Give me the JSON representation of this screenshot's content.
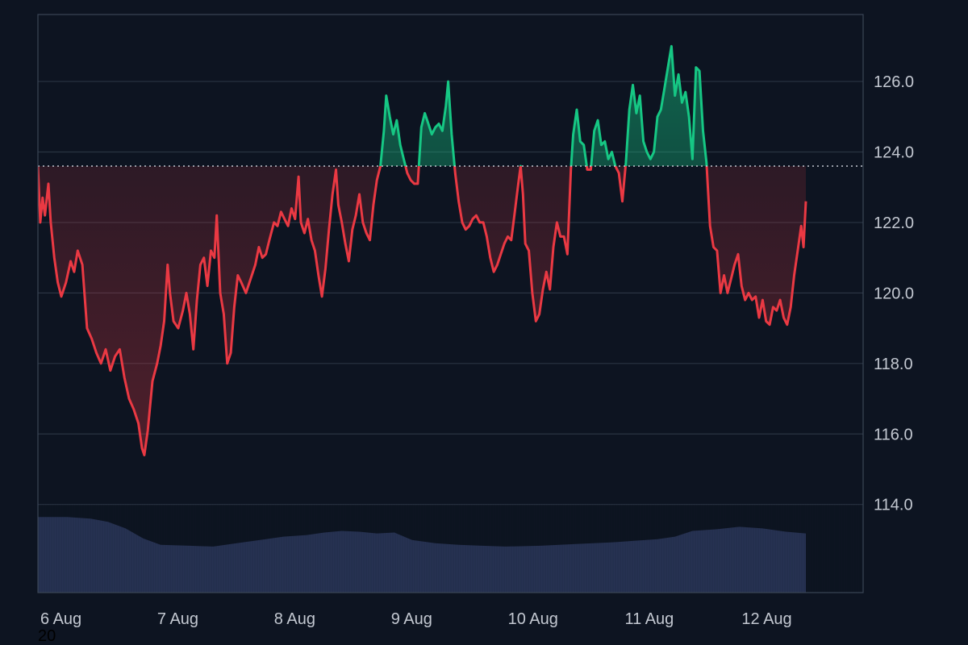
{
  "chart_data": {
    "type": "area",
    "title": "",
    "xlabel": "",
    "ylabel": "",
    "baseline": 123.6,
    "ylim": [
      111.5,
      127.9
    ],
    "y_ticks": [
      "126.0",
      "124.0",
      "122.0",
      "120.0",
      "118.0",
      "116.0",
      "114.0"
    ],
    "y_tick_values": [
      126,
      124,
      122,
      120,
      118,
      116,
      114
    ],
    "x_ticks": [
      "6 Aug",
      "7 Aug",
      "8 Aug",
      "9 Aug",
      "10 Aug",
      "11 Aug",
      "12 Aug"
    ],
    "x_tick_positions_day": [
      0,
      1,
      2,
      3,
      4,
      5,
      6
    ],
    "corner_label": "20",
    "grid": true,
    "x_range_days": [
      0,
      7.06
    ],
    "series": [
      {
        "values": [
          [
            0.0,
            123.6
          ],
          [
            0.02,
            122.0
          ],
          [
            0.04,
            122.7
          ],
          [
            0.06,
            122.2
          ],
          [
            0.09,
            123.1
          ],
          [
            0.11,
            122.0
          ],
          [
            0.14,
            121.0
          ],
          [
            0.17,
            120.3
          ],
          [
            0.2,
            119.9
          ],
          [
            0.24,
            120.3
          ],
          [
            0.28,
            120.9
          ],
          [
            0.31,
            120.6
          ],
          [
            0.34,
            121.2
          ],
          [
            0.38,
            120.8
          ],
          [
            0.42,
            119.0
          ],
          [
            0.46,
            118.7
          ],
          [
            0.5,
            118.3
          ],
          [
            0.54,
            118.0
          ],
          [
            0.58,
            118.4
          ],
          [
            0.62,
            117.8
          ],
          [
            0.66,
            118.2
          ],
          [
            0.7,
            118.4
          ],
          [
            0.74,
            117.6
          ],
          [
            0.78,
            117.0
          ],
          [
            0.82,
            116.7
          ],
          [
            0.86,
            116.3
          ],
          [
            0.89,
            115.6
          ],
          [
            0.91,
            115.4
          ],
          [
            0.94,
            116.1
          ],
          [
            0.98,
            117.5
          ],
          [
            1.02,
            118.0
          ],
          [
            1.05,
            118.5
          ],
          [
            1.08,
            119.2
          ],
          [
            1.11,
            120.8
          ],
          [
            1.13,
            120.0
          ],
          [
            1.16,
            119.2
          ],
          [
            1.2,
            119.0
          ],
          [
            1.24,
            119.5
          ],
          [
            1.27,
            120.0
          ],
          [
            1.3,
            119.4
          ],
          [
            1.33,
            118.4
          ],
          [
            1.36,
            119.8
          ],
          [
            1.39,
            120.8
          ],
          [
            1.42,
            121.0
          ],
          [
            1.45,
            120.2
          ],
          [
            1.48,
            121.2
          ],
          [
            1.51,
            121.0
          ],
          [
            1.53,
            122.2
          ],
          [
            1.56,
            120.0
          ],
          [
            1.59,
            119.4
          ],
          [
            1.62,
            118.0
          ],
          [
            1.65,
            118.3
          ],
          [
            1.68,
            119.6
          ],
          [
            1.71,
            120.5
          ],
          [
            1.74,
            120.3
          ],
          [
            1.78,
            120.0
          ],
          [
            1.82,
            120.4
          ],
          [
            1.86,
            120.8
          ],
          [
            1.89,
            121.3
          ],
          [
            1.92,
            121.0
          ],
          [
            1.95,
            121.1
          ],
          [
            1.98,
            121.5
          ],
          [
            2.02,
            122.0
          ],
          [
            2.05,
            121.9
          ],
          [
            2.08,
            122.3
          ],
          [
            2.11,
            122.1
          ],
          [
            2.14,
            121.9
          ],
          [
            2.17,
            122.4
          ],
          [
            2.2,
            122.1
          ],
          [
            2.23,
            123.3
          ],
          [
            2.25,
            122.0
          ],
          [
            2.28,
            121.7
          ],
          [
            2.31,
            122.1
          ],
          [
            2.34,
            121.5
          ],
          [
            2.37,
            121.2
          ],
          [
            2.4,
            120.5
          ],
          [
            2.43,
            119.9
          ],
          [
            2.46,
            120.7
          ],
          [
            2.49,
            121.8
          ],
          [
            2.52,
            122.8
          ],
          [
            2.55,
            123.5
          ],
          [
            2.57,
            122.5
          ],
          [
            2.6,
            122.0
          ],
          [
            2.63,
            121.4
          ],
          [
            2.66,
            120.9
          ],
          [
            2.69,
            121.8
          ],
          [
            2.72,
            122.2
          ],
          [
            2.75,
            122.8
          ],
          [
            2.78,
            122.0
          ],
          [
            2.81,
            121.7
          ],
          [
            2.84,
            121.5
          ],
          [
            2.87,
            122.5
          ],
          [
            2.9,
            123.2
          ],
          [
            2.93,
            123.6
          ],
          [
            2.96,
            124.6
          ],
          [
            2.98,
            125.6
          ],
          [
            3.01,
            125.0
          ],
          [
            3.04,
            124.5
          ],
          [
            3.07,
            124.9
          ],
          [
            3.1,
            124.2
          ],
          [
            3.13,
            123.8
          ],
          [
            3.16,
            123.4
          ],
          [
            3.19,
            123.2
          ],
          [
            3.22,
            123.1
          ],
          [
            3.25,
            123.1
          ],
          [
            3.28,
            124.7
          ],
          [
            3.31,
            125.1
          ],
          [
            3.34,
            124.8
          ],
          [
            3.37,
            124.5
          ],
          [
            3.4,
            124.7
          ],
          [
            3.43,
            124.8
          ],
          [
            3.46,
            124.6
          ],
          [
            3.49,
            125.3
          ],
          [
            3.51,
            126.0
          ],
          [
            3.54,
            124.5
          ],
          [
            3.57,
            123.4
          ],
          [
            3.6,
            122.6
          ],
          [
            3.63,
            122.0
          ],
          [
            3.66,
            121.8
          ],
          [
            3.69,
            121.9
          ],
          [
            3.72,
            122.1
          ],
          [
            3.75,
            122.2
          ],
          [
            3.78,
            122.0
          ],
          [
            3.81,
            122.0
          ],
          [
            3.84,
            121.6
          ],
          [
            3.87,
            121.0
          ],
          [
            3.9,
            120.6
          ],
          [
            3.93,
            120.8
          ],
          [
            3.96,
            121.1
          ],
          [
            3.99,
            121.4
          ],
          [
            4.02,
            121.6
          ],
          [
            4.05,
            121.5
          ],
          [
            4.08,
            122.3
          ],
          [
            4.11,
            123.1
          ],
          [
            4.13,
            123.6
          ],
          [
            4.15,
            122.8
          ],
          [
            4.17,
            121.4
          ],
          [
            4.2,
            121.2
          ],
          [
            4.23,
            120.0
          ],
          [
            4.26,
            119.2
          ],
          [
            4.29,
            119.4
          ],
          [
            4.32,
            120.1
          ],
          [
            4.35,
            120.6
          ],
          [
            4.38,
            120.1
          ],
          [
            4.41,
            121.3
          ],
          [
            4.44,
            122.0
          ],
          [
            4.47,
            121.6
          ],
          [
            4.5,
            121.6
          ],
          [
            4.53,
            121.1
          ],
          [
            4.56,
            123.5
          ],
          [
            4.58,
            124.5
          ],
          [
            4.61,
            125.2
          ],
          [
            4.64,
            124.3
          ],
          [
            4.67,
            124.2
          ],
          [
            4.7,
            123.5
          ],
          [
            4.73,
            123.5
          ],
          [
            4.76,
            124.6
          ],
          [
            4.79,
            124.9
          ],
          [
            4.82,
            124.2
          ],
          [
            4.85,
            124.3
          ],
          [
            4.88,
            123.8
          ],
          [
            4.91,
            124.0
          ],
          [
            4.94,
            123.6
          ],
          [
            4.97,
            123.4
          ],
          [
            5.0,
            122.6
          ],
          [
            5.03,
            123.7
          ],
          [
            5.06,
            125.2
          ],
          [
            5.09,
            125.9
          ],
          [
            5.12,
            125.1
          ],
          [
            5.15,
            125.6
          ],
          [
            5.18,
            124.3
          ],
          [
            5.21,
            124.0
          ],
          [
            5.24,
            123.8
          ],
          [
            5.27,
            124.0
          ],
          [
            5.3,
            125.0
          ],
          [
            5.33,
            125.2
          ],
          [
            5.36,
            125.8
          ],
          [
            5.39,
            126.4
          ],
          [
            5.42,
            127.0
          ],
          [
            5.45,
            125.6
          ],
          [
            5.48,
            126.2
          ],
          [
            5.51,
            125.4
          ],
          [
            5.54,
            125.7
          ],
          [
            5.57,
            125.0
          ],
          [
            5.6,
            123.8
          ],
          [
            5.63,
            126.4
          ],
          [
            5.66,
            126.3
          ],
          [
            5.69,
            124.6
          ],
          [
            5.72,
            123.7
          ],
          [
            5.75,
            121.9
          ],
          [
            5.78,
            121.3
          ],
          [
            5.81,
            121.2
          ],
          [
            5.84,
            120.0
          ],
          [
            5.87,
            120.5
          ],
          [
            5.9,
            120.0
          ],
          [
            5.93,
            120.4
          ],
          [
            5.96,
            120.8
          ],
          [
            5.99,
            121.1
          ],
          [
            6.02,
            120.2
          ],
          [
            6.05,
            119.8
          ],
          [
            6.08,
            120.0
          ],
          [
            6.11,
            119.8
          ],
          [
            6.14,
            119.9
          ],
          [
            6.17,
            119.3
          ],
          [
            6.2,
            119.8
          ],
          [
            6.23,
            119.2
          ],
          [
            6.26,
            119.1
          ],
          [
            6.29,
            119.6
          ],
          [
            6.32,
            119.5
          ],
          [
            6.35,
            119.8
          ],
          [
            6.38,
            119.3
          ],
          [
            6.41,
            119.1
          ],
          [
            6.44,
            119.6
          ],
          [
            6.47,
            120.5
          ],
          [
            6.5,
            121.2
          ],
          [
            6.53,
            121.9
          ],
          [
            6.55,
            121.3
          ],
          [
            6.57,
            122.6
          ]
        ]
      },
      {
        "values": [
          [
            0.0,
            0.92
          ],
          [
            0.25,
            0.92
          ],
          [
            0.45,
            0.9
          ],
          [
            0.6,
            0.86
          ],
          [
            0.75,
            0.78
          ],
          [
            0.9,
            0.66
          ],
          [
            1.05,
            0.58
          ],
          [
            1.3,
            0.57
          ],
          [
            1.5,
            0.56
          ],
          [
            1.7,
            0.6
          ],
          [
            1.9,
            0.64
          ],
          [
            2.1,
            0.68
          ],
          [
            2.3,
            0.7
          ],
          [
            2.45,
            0.73
          ],
          [
            2.6,
            0.75
          ],
          [
            2.75,
            0.74
          ],
          [
            2.9,
            0.72
          ],
          [
            3.05,
            0.73
          ],
          [
            3.2,
            0.64
          ],
          [
            3.4,
            0.6
          ],
          [
            3.6,
            0.58
          ],
          [
            3.8,
            0.57
          ],
          [
            4.0,
            0.56
          ],
          [
            4.3,
            0.57
          ],
          [
            4.6,
            0.59
          ],
          [
            4.9,
            0.61
          ],
          [
            5.1,
            0.63
          ],
          [
            5.3,
            0.65
          ],
          [
            5.45,
            0.68
          ],
          [
            5.6,
            0.75
          ],
          [
            5.8,
            0.77
          ],
          [
            6.0,
            0.8
          ],
          [
            6.2,
            0.78
          ],
          [
            6.4,
            0.74
          ],
          [
            6.57,
            0.72
          ]
        ]
      }
    ]
  },
  "colors": {
    "background": "#0d1421",
    "grid": "#2a3342",
    "axis_text": "#c3c8d1",
    "up": "#16c784",
    "down": "#ea3943",
    "volume": "#2a3558",
    "baseline_dots": "#c3c8d1"
  }
}
